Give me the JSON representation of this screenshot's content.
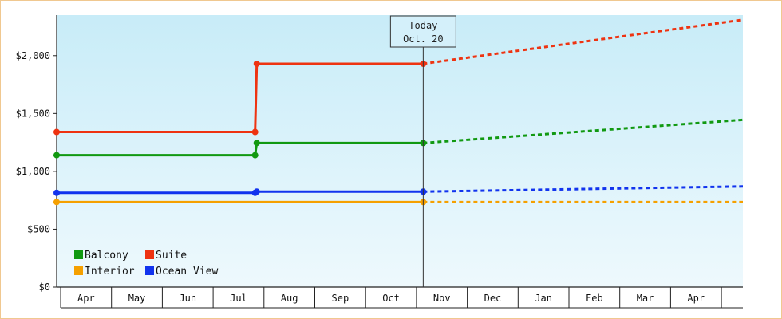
{
  "chart_data": {
    "type": "line",
    "title": "",
    "xlabel": "",
    "ylabel": "",
    "ylim": [
      0,
      2350
    ],
    "y_ticks": [
      {
        "value": 0,
        "label": "$0"
      },
      {
        "value": 500,
        "label": "$500"
      },
      {
        "value": 1000,
        "label": "$1,000"
      },
      {
        "value": 1500,
        "label": "$1,500"
      },
      {
        "value": 2000,
        "label": "$2,000"
      }
    ],
    "x_months": [
      "Apr",
      "May",
      "Jun",
      "Jul",
      "Aug",
      "Sep",
      "Oct",
      "Nov",
      "Dec",
      "Jan",
      "Feb",
      "Mar",
      "Apr"
    ],
    "x_range": [
      0,
      12.45
    ],
    "today": {
      "x": 6.65,
      "line1": "Today",
      "line2": "Oct. 20"
    },
    "grid": false,
    "legend": {
      "position": "bottom-left"
    },
    "background_colors": [
      "#c8ecf8",
      "#eef9fd"
    ],
    "series": [
      {
        "name": "Balcony",
        "color": "#119911",
        "history": [
          [
            0,
            1140
          ],
          [
            3.6,
            1140
          ],
          [
            3.63,
            1245
          ],
          [
            6.65,
            1245
          ]
        ],
        "history_markers": [
          [
            0,
            1140
          ],
          [
            3.6,
            1140
          ],
          [
            3.63,
            1245
          ],
          [
            6.65,
            1245
          ]
        ],
        "forecast": [
          [
            6.65,
            1245
          ],
          [
            12.45,
            1445
          ]
        ]
      },
      {
        "name": "Suite",
        "color": "#ee3311",
        "history": [
          [
            0,
            1340
          ],
          [
            3.6,
            1340
          ],
          [
            3.63,
            1930
          ],
          [
            6.65,
            1930
          ]
        ],
        "history_markers": [
          [
            0,
            1340
          ],
          [
            3.6,
            1340
          ],
          [
            3.63,
            1930
          ],
          [
            6.65,
            1930
          ]
        ],
        "forecast": [
          [
            6.65,
            1930
          ],
          [
            12.45,
            2310
          ]
        ]
      },
      {
        "name": "Interior",
        "color": "#f5a000",
        "history": [
          [
            0,
            735
          ],
          [
            6.65,
            735
          ]
        ],
        "history_markers": [
          [
            0,
            735
          ],
          [
            6.65,
            735
          ]
        ],
        "forecast": [
          [
            6.65,
            735
          ],
          [
            12.45,
            735
          ]
        ]
      },
      {
        "name": "Ocean View",
        "color": "#1133ee",
        "history": [
          [
            0,
            815
          ],
          [
            3.6,
            815
          ],
          [
            3.63,
            825
          ],
          [
            6.65,
            825
          ]
        ],
        "history_markers": [
          [
            0,
            815
          ],
          [
            3.6,
            815
          ],
          [
            3.63,
            825
          ],
          [
            6.65,
            825
          ]
        ],
        "forecast": [
          [
            6.65,
            825
          ],
          [
            12.45,
            870
          ]
        ]
      }
    ]
  }
}
